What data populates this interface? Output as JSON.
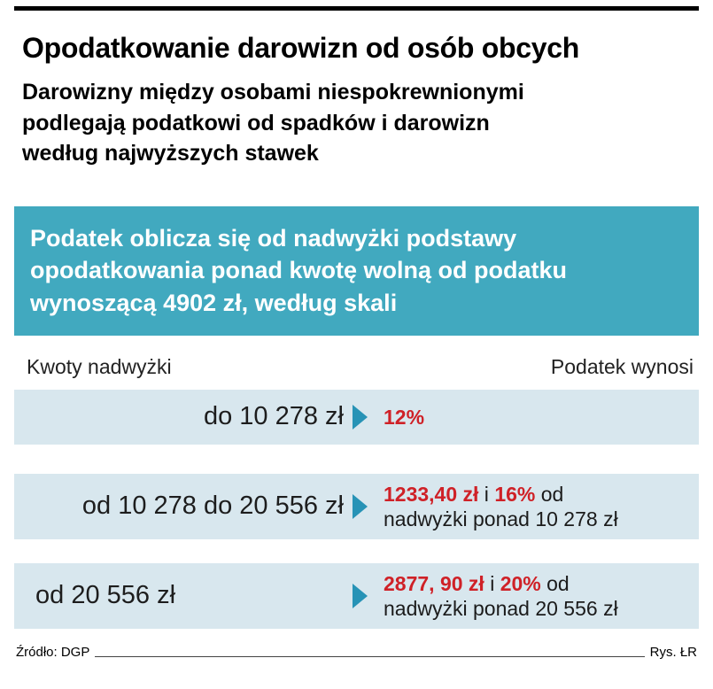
{
  "header": {
    "title": "Opodatkowanie darowizn od osób obcych",
    "subtitle": "Darowizny między osobami niespokrewnionymi\npodlegają podatkowi od spadków i darowizn\nwedług najwyższych stawek"
  },
  "highlight_box": {
    "text": "Podatek oblicza się od nadwyżki podstawy\nopodatkowania ponad kwotę wolną od podatku\nwynoszącą 4902 zł, według skali"
  },
  "table": {
    "left_header": "Kwoty nadwyżki",
    "right_header": "Podatek wynosi",
    "rows": [
      {
        "range": "do 10 278 zł",
        "align": "right",
        "result_lines": [
          [
            {
              "text": "12%",
              "red": true
            }
          ]
        ]
      },
      {
        "range": "od 10 278 do 20 556 zł",
        "align": "right",
        "result_lines": [
          [
            {
              "text": "1233,40 zł",
              "red": true
            },
            {
              "text": " i ",
              "red": false
            },
            {
              "text": "16%",
              "red": true
            },
            {
              "text": " od",
              "red": false
            }
          ],
          [
            {
              "text": "nadwyżki ponad 10 278 zł",
              "red": false
            }
          ]
        ]
      },
      {
        "range": "od 20 556 zł",
        "align": "left",
        "result_lines": [
          [
            {
              "text": "2877, 90 zł",
              "red": true
            },
            {
              "text": " i ",
              "red": false
            },
            {
              "text": "20%",
              "red": true
            },
            {
              "text": " od",
              "red": false
            }
          ],
          [
            {
              "text": "nadwyżki ponad 20 556 zł",
              "red": false
            }
          ]
        ]
      }
    ]
  },
  "chart_data": {
    "type": "table",
    "title": "Opodatkowanie darowizn od osób obcych",
    "columns": [
      "Kwoty nadwyżki",
      "Podatek wynosi"
    ],
    "rows": [
      [
        "do 10 278 zł",
        "12%"
      ],
      [
        "od 10 278 do 20 556 zł",
        "1233,40 zł i 16% od nadwyżki ponad 10 278 zł"
      ],
      [
        "od 20 556 zł",
        "2877, 90 zł i 20% od nadwyżki ponad 20 556 zł"
      ]
    ],
    "tax_free_amount": "4902 zł"
  },
  "footer": {
    "source": "Źródło: DGP",
    "credit": "Rys. ŁR"
  },
  "colors": {
    "highlight_bg": "#41a9bf",
    "row_bg": "#d8e7ee",
    "arrow": "#2793b6",
    "accent_red": "#cf2127"
  }
}
